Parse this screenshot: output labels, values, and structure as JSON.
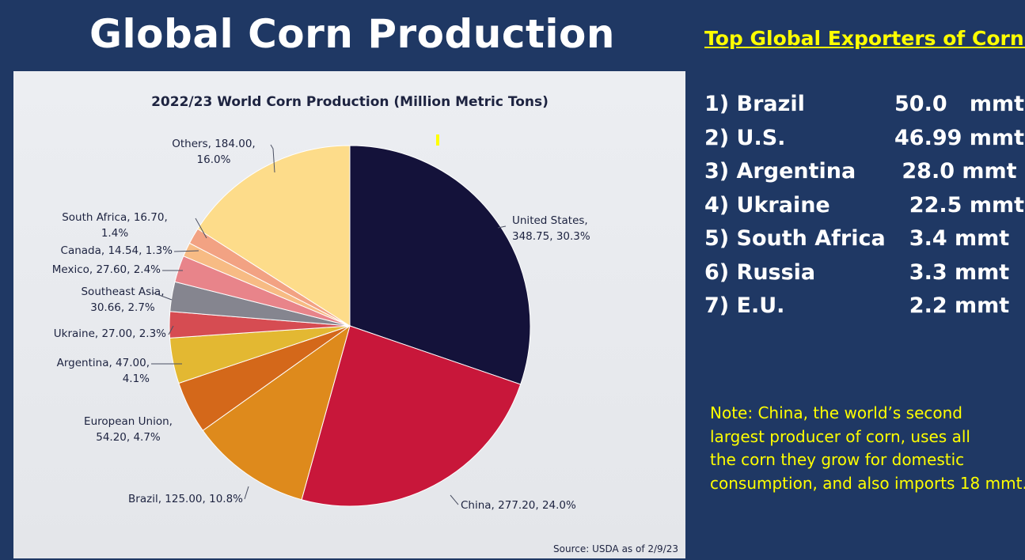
{
  "slide_title": "Global Corn Production",
  "chart_data": {
    "type": "pie",
    "title": "2022/23 World Corn Production (Million Metric Tons)",
    "source": "Source: USDA as of 2/9/23",
    "slices": [
      {
        "name": "United States",
        "value": 348.75,
        "percent": "30.3%",
        "color": "#14123a"
      },
      {
        "name": "China",
        "value": 277.2,
        "percent": "24.0%",
        "color": "#c8173a"
      },
      {
        "name": "Brazil",
        "value": 125.0,
        "percent": "10.8%",
        "color": "#de8a1c"
      },
      {
        "name": "European Union",
        "value": 54.2,
        "percent": "4.7%",
        "color": "#d4681a"
      },
      {
        "name": "Argentina",
        "value": 47.0,
        "percent": "4.1%",
        "color": "#e3b832"
      },
      {
        "name": "Ukraine",
        "value": 27.0,
        "percent": "2.3%",
        "color": "#d64c52"
      },
      {
        "name": "Southeast Asia",
        "value": 30.66,
        "percent": "2.7%",
        "color": "#85858f"
      },
      {
        "name": "Mexico",
        "value": 27.6,
        "percent": "2.4%",
        "color": "#e8848a"
      },
      {
        "name": "Canada",
        "value": 14.54,
        "percent": "1.3%",
        "color": "#f7bb84"
      },
      {
        "name": "South Africa",
        "value": 16.7,
        "percent": "1.4%",
        "color": "#f2a283"
      },
      {
        "name": "Others",
        "value": 184.0,
        "percent": "16.0%",
        "color": "#fddc8a"
      }
    ],
    "labels": [
      [
        "United States,",
        "348.75, 30.3%"
      ],
      [
        "China, 277.20, 24.0%"
      ],
      [
        "Brazil, 125.00, 10.8%"
      ],
      [
        "European Union,",
        "54.20, 4.7%"
      ],
      [
        "Argentina, 47.00,",
        "4.1%"
      ],
      [
        "Ukraine, 27.00, 2.3%"
      ],
      [
        "Southeast Asia,",
        "30.66, 2.7%"
      ],
      [
        "Mexico, 27.60, 2.4%"
      ],
      [
        "Canada, 14.54, 1.3%"
      ],
      [
        "South Africa, 16.70,",
        "1.4%"
      ],
      [
        "Others, 184.00,",
        "16.0%"
      ]
    ]
  },
  "exporters": {
    "title": "Top Global Exporters of Corn:",
    "items": [
      {
        "name": "1) Brazil",
        "value": "50.0   mmt"
      },
      {
        "name": "2) U.S.",
        "value": "46.99 mmt"
      },
      {
        "name": "3) Argentina",
        "value": " 28.0 mmt"
      },
      {
        "name": "4) Ukraine",
        "value": "  22.5 mmt"
      },
      {
        "name": "5) South Africa",
        "value": "  3.4 mmt"
      },
      {
        "name": "6) Russia",
        "value": "  3.3 mmt"
      },
      {
        "name": "7) E.U.",
        "value": "  2.2 mmt"
      }
    ]
  },
  "note": [
    "Note: China, the world’s second",
    "largest producer of corn, uses all",
    "the corn they grow for domestic",
    "consumption, and also imports 18 mmt."
  ]
}
